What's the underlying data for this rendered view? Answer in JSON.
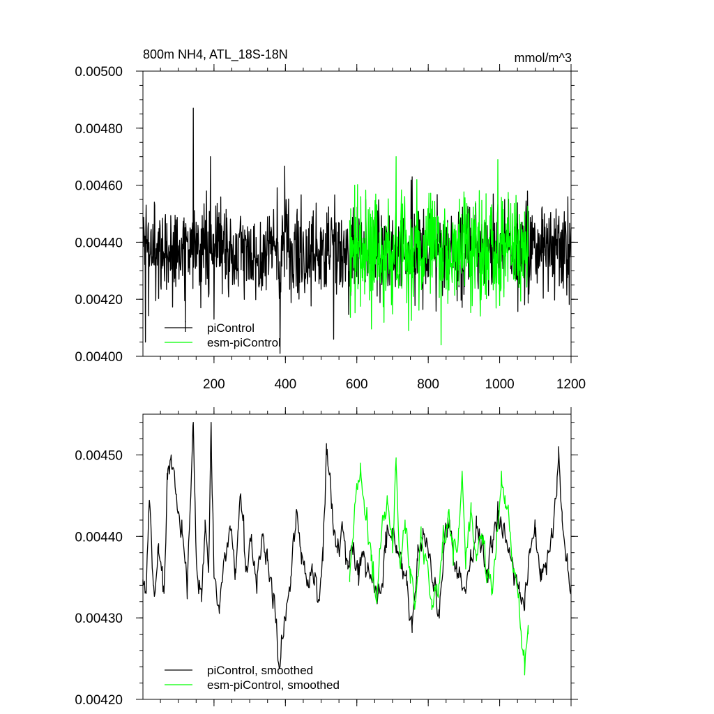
{
  "figure": {
    "title_left": "800m NH4, ATL_18S-18N",
    "title_right": "mmol/m^3"
  },
  "chart_data": [
    {
      "type": "line",
      "x_range": [
        1,
        1200
      ],
      "ylim": [
        0.004,
        0.005
      ],
      "x_ticks": [
        200,
        400,
        600,
        800,
        1000,
        1200
      ],
      "x_tick_labels": [
        "200",
        "400",
        "600",
        "800",
        "1000",
        "1200"
      ],
      "y_ticks": [
        0.004,
        0.0042,
        0.0044,
        0.0046,
        0.0048,
        0.005
      ],
      "y_tick_labels": [
        "0.00400",
        "0.00420",
        "0.00440",
        "0.00460",
        "0.00480",
        "0.00500"
      ],
      "legend": "bottom-left",
      "series": [
        {
          "name": "piControl",
          "color": "#000000",
          "x_range": [
            1,
            1200
          ],
          "mean": 0.00437,
          "noise_sd": 8.5e-05,
          "notable_points": [
            [
              8,
              0.00405
            ],
            [
              60,
              0.00436
            ],
            [
              120,
              0.00412
            ],
            [
              142,
              0.00487
            ],
            [
              190,
              0.0047
            ],
            [
              200,
              0.00413
            ],
            [
              385,
              0.00401
            ],
            [
              535,
              0.00406
            ]
          ]
        },
        {
          "name": "esm-piControl",
          "color": "#00ff00",
          "x_range": [
            580,
            1080
          ],
          "mean": 0.00437,
          "noise_sd": 9e-05,
          "notable_points": [
            [
              710,
              0.0047
            ],
            [
              745,
              0.00409
            ],
            [
              995,
              0.00469
            ]
          ]
        }
      ]
    },
    {
      "type": "line",
      "x_range": [
        1,
        1200
      ],
      "ylim": [
        0.0042,
        0.00455
      ],
      "x_ticks": [
        200,
        400,
        600,
        800,
        1000,
        1200
      ],
      "y_ticks": [
        0.0042,
        0.0043,
        0.0044,
        0.0045
      ],
      "y_tick_labels": [
        "0.00420",
        "0.00430",
        "0.00440",
        "0.00450"
      ],
      "legend": "bottom-left",
      "series": [
        {
          "name": "piControl, smoothed",
          "color": "#000000",
          "x_range": [
            1,
            1200
          ],
          "keypoints": [
            [
              1,
              0.00434
            ],
            [
              10,
              0.00433
            ],
            [
              20,
              0.00444
            ],
            [
              30,
              0.00434
            ],
            [
              45,
              0.00438
            ],
            [
              60,
              0.00433
            ],
            [
              70,
              0.00447
            ],
            [
              80,
              0.0045
            ],
            [
              95,
              0.00445
            ],
            [
              110,
              0.00442
            ],
            [
              125,
              0.00433
            ],
            [
              142,
              0.00454
            ],
            [
              150,
              0.00438
            ],
            [
              165,
              0.00432
            ],
            [
              175,
              0.00442
            ],
            [
              185,
              0.00436
            ],
            [
              192,
              0.00454
            ],
            [
              200,
              0.00435
            ],
            [
              215,
              0.00431
            ],
            [
              230,
              0.00438
            ],
            [
              245,
              0.00441
            ],
            [
              260,
              0.00436
            ],
            [
              275,
              0.00445
            ],
            [
              290,
              0.00436
            ],
            [
              305,
              0.0044
            ],
            [
              320,
              0.00433
            ],
            [
              335,
              0.0044
            ],
            [
              350,
              0.00437
            ],
            [
              370,
              0.00432
            ],
            [
              385,
              0.00424
            ],
            [
              400,
              0.0043
            ],
            [
              415,
              0.00435
            ],
            [
              430,
              0.00443
            ],
            [
              445,
              0.00438
            ],
            [
              460,
              0.00434
            ],
            [
              475,
              0.00436
            ],
            [
              490,
              0.00432
            ],
            [
              505,
              0.00437
            ],
            [
              515,
              0.0045
            ],
            [
              530,
              0.00444
            ],
            [
              545,
              0.00438
            ],
            [
              560,
              0.00441
            ],
            [
              575,
              0.00436
            ],
            [
              590,
              0.00439
            ],
            [
              605,
              0.00434
            ],
            [
              620,
              0.00438
            ],
            [
              640,
              0.00435
            ],
            [
              660,
              0.00433
            ],
            [
              680,
              0.00438
            ],
            [
              700,
              0.00441
            ],
            [
              710,
              0.00438
            ],
            [
              725,
              0.00436
            ],
            [
              740,
              0.00434
            ],
            [
              755,
              0.00429
            ],
            [
              770,
              0.00437
            ],
            [
              785,
              0.00441
            ],
            [
              800,
              0.00438
            ],
            [
              815,
              0.00434
            ],
            [
              830,
              0.00431
            ],
            [
              845,
              0.00439
            ],
            [
              860,
              0.00442
            ],
            [
              875,
              0.00436
            ],
            [
              890,
              0.00435
            ],
            [
              905,
              0.00433
            ],
            [
              920,
              0.00437
            ],
            [
              935,
              0.00441
            ],
            [
              950,
              0.00439
            ],
            [
              965,
              0.00436
            ],
            [
              980,
              0.00438
            ],
            [
              995,
              0.00442
            ],
            [
              1010,
              0.00441
            ],
            [
              1025,
              0.00438
            ],
            [
              1040,
              0.00434
            ],
            [
              1055,
              0.00433
            ],
            [
              1070,
              0.00431
            ],
            [
              1085,
              0.00438
            ],
            [
              1100,
              0.0044
            ],
            [
              1115,
              0.00436
            ],
            [
              1130,
              0.00436
            ],
            [
              1145,
              0.00441
            ],
            [
              1160,
              0.00445
            ],
            [
              1165,
              0.00451
            ],
            [
              1175,
              0.00442
            ],
            [
              1185,
              0.00437
            ],
            [
              1200,
              0.00434
            ]
          ]
        },
        {
          "name": "esm-piControl, smoothed",
          "color": "#00ff00",
          "x_range": [
            580,
            1080
          ],
          "keypoints": [
            [
              580,
              0.00435
            ],
            [
              590,
              0.0044
            ],
            [
              600,
              0.00446
            ],
            [
              610,
              0.00449
            ],
            [
              625,
              0.00442
            ],
            [
              640,
              0.00437
            ],
            [
              655,
              0.00432
            ],
            [
              670,
              0.00441
            ],
            [
              685,
              0.00445
            ],
            [
              700,
              0.00438
            ],
            [
              710,
              0.00449
            ],
            [
              720,
              0.00437
            ],
            [
              735,
              0.00442
            ],
            [
              750,
              0.00436
            ],
            [
              765,
              0.00432
            ],
            [
              780,
              0.0044
            ],
            [
              795,
              0.00437
            ],
            [
              810,
              0.00431
            ],
            [
              825,
              0.00433
            ],
            [
              840,
              0.00438
            ],
            [
              855,
              0.00442
            ],
            [
              870,
              0.00437
            ],
            [
              885,
              0.00441
            ],
            [
              895,
              0.00448
            ],
            [
              905,
              0.00436
            ],
            [
              920,
              0.00443
            ],
            [
              935,
              0.00437
            ],
            [
              950,
              0.0044
            ],
            [
              965,
              0.00435
            ],
            [
              980,
              0.00433
            ],
            [
              995,
              0.00441
            ],
            [
              1005,
              0.00448
            ],
            [
              1015,
              0.00445
            ],
            [
              1025,
              0.00443
            ],
            [
              1035,
              0.00437
            ],
            [
              1045,
              0.00435
            ],
            [
              1055,
              0.00431
            ],
            [
              1065,
              0.00426
            ],
            [
              1070,
              0.00423
            ],
            [
              1080,
              0.00428
            ]
          ]
        }
      ]
    }
  ]
}
